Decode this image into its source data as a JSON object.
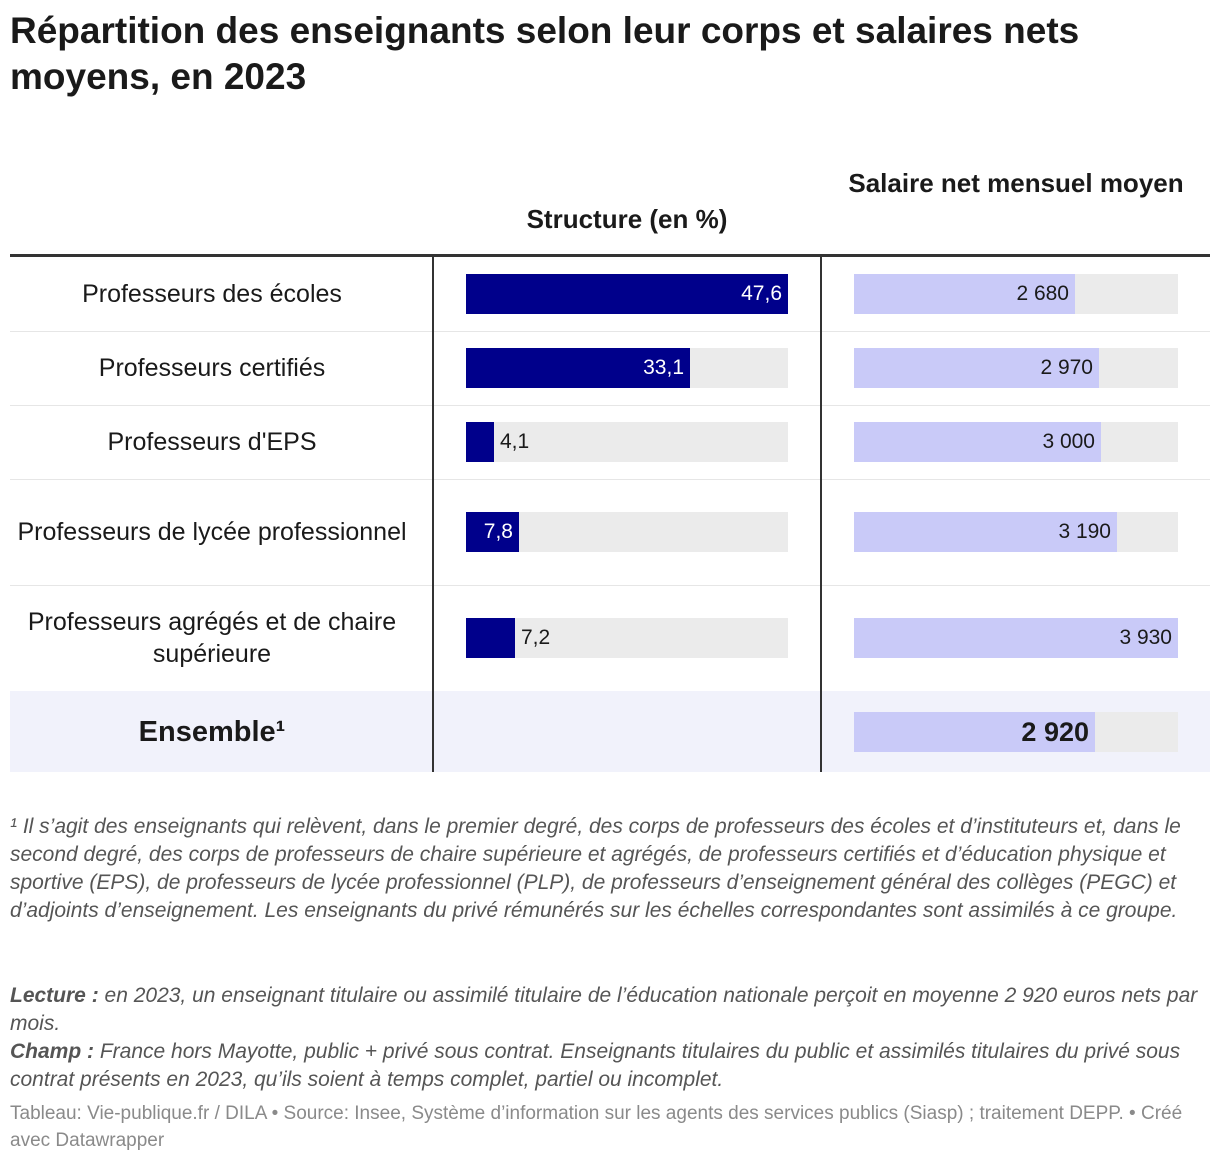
{
  "title": "Répartition des enseignants selon leur corps et salaires nets moyens, en 2023",
  "columns": {
    "structure": "Structure (en %)",
    "salary": "Salaire net mensuel moyen"
  },
  "chart_data": {
    "type": "table",
    "title": "Répartition des enseignants selon leur corps et salaires nets moyens, en 2023",
    "columns": [
      "Structure (en %)",
      "Salaire net mensuel moyen"
    ],
    "rows": [
      {
        "label": "Professeurs des écoles",
        "structure": 47.6,
        "structure_label": "47,6",
        "salary": 2680,
        "salary_label": "2 680"
      },
      {
        "label": "Professeurs certifiés",
        "structure": 33.1,
        "structure_label": "33,1",
        "salary": 2970,
        "salary_label": "2 970"
      },
      {
        "label": "Professeurs d'EPS",
        "structure": 4.1,
        "structure_label": "4,1",
        "salary": 3000,
        "salary_label": "3 000"
      },
      {
        "label": "Professeurs de lycée professionnel",
        "structure": 7.8,
        "structure_label": "7,8",
        "salary": 3190,
        "salary_label": "3 190"
      },
      {
        "label": "Professeurs agrégés et de chaire supérieure",
        "structure": 7.2,
        "structure_label": "7,2",
        "salary": 3930,
        "salary_label": "3 930"
      }
    ],
    "total": {
      "label": "Ensemble¹",
      "salary": 2920,
      "salary_label": "2 920"
    },
    "structure_range": [
      0,
      47.6
    ],
    "salary_range": [
      0,
      3930
    ],
    "colors": {
      "structure": "#00008b",
      "salary": "#c9caf8",
      "track": "#ebebeb",
      "total_row": "#f1f2fb"
    }
  },
  "notes": {
    "footnote": "¹ Il s’agit des enseignants qui relèvent, dans le premier degré, des corps de professeurs des écoles et d’instituteurs et, dans le second degré, des corps de professeurs de chaire supérieure et agrégés, de professeurs certifiés et d’éducation physique et sportive (EPS), de professeurs de lycée professionnel (PLP), de professeurs d’enseignement général des collèges (PEGC) et d’adjoints d’enseignement. Les enseignants du privé rémunérés sur les échelles correspondantes sont assimilés à ce groupe.",
    "lecture_label": "Lecture :",
    "lecture": " en 2023, un enseignant titulaire ou assimilé titulaire de l’éducation nationale perçoit en moyenne 2 920 euros nets par mois.",
    "champ_label": "Champ :",
    "champ": " France hors Mayotte, public + privé sous contrat. Enseignants titulaires du public et assimilés titulaires du privé sous contrat présents en 2023, qu’ils soient à temps complet, partiel ou incomplet.",
    "credit": "Tableau: Vie-publique.fr / DILA • Source: Insee, Système d’information sur les agents des services publics (Siasp) ; traitement DEPP. • Créé avec Datawrapper"
  }
}
